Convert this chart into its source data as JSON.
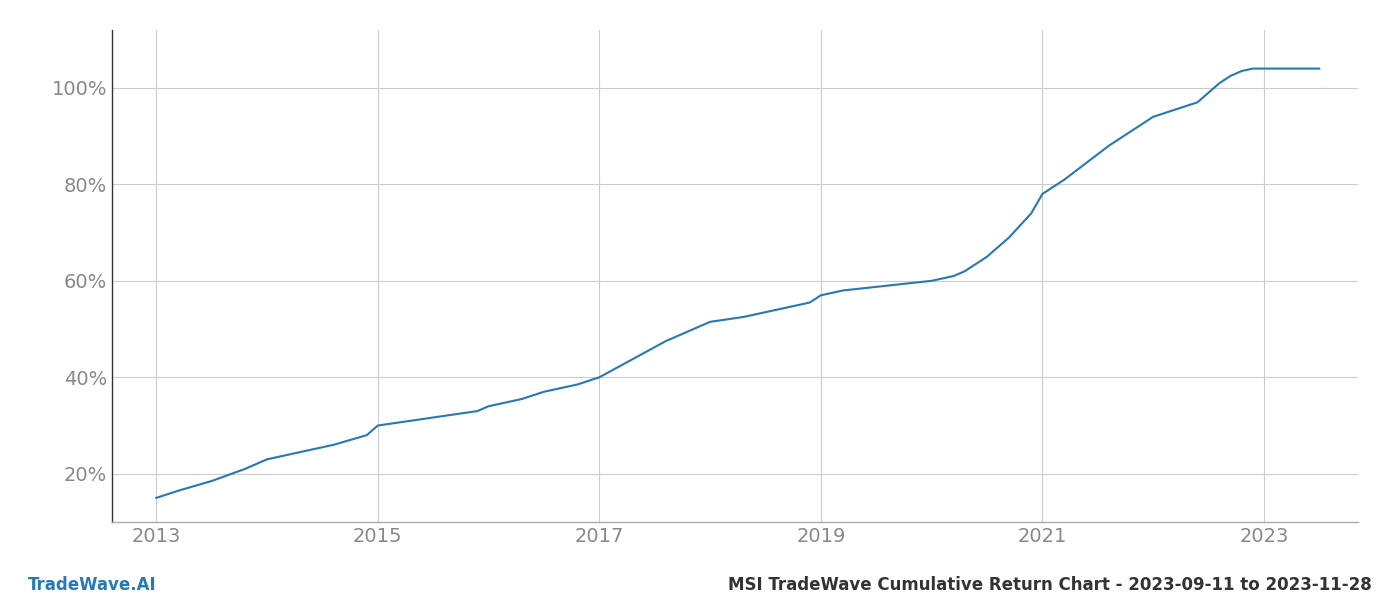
{
  "title_left": "TradeWave.AI",
  "title_right": "MSI TradeWave Cumulative Return Chart - 2023-09-11 to 2023-11-28",
  "line_color": "#2878b5",
  "background_color": "#ffffff",
  "grid_color": "#cccccc",
  "x_years": [
    2013.0,
    2013.2,
    2013.5,
    2013.8,
    2014.0,
    2014.3,
    2014.6,
    2014.9,
    2015.0,
    2015.3,
    2015.6,
    2015.9,
    2016.0,
    2016.3,
    2016.5,
    2016.8,
    2017.0,
    2017.2,
    2017.4,
    2017.6,
    2017.8,
    2018.0,
    2018.3,
    2018.5,
    2018.7,
    2018.9,
    2019.0,
    2019.1,
    2019.2,
    2019.4,
    2019.6,
    2019.8,
    2020.0,
    2020.1,
    2020.2,
    2020.3,
    2020.5,
    2020.7,
    2020.9,
    2021.0,
    2021.2,
    2021.4,
    2021.6,
    2021.8,
    2022.0,
    2022.2,
    2022.4,
    2022.5,
    2022.6,
    2022.7,
    2022.8,
    2022.9,
    2023.0,
    2023.5
  ],
  "y_values": [
    15.0,
    16.5,
    18.5,
    21.0,
    23.0,
    24.5,
    26.0,
    28.0,
    30.0,
    31.0,
    32.0,
    33.0,
    34.0,
    35.5,
    37.0,
    38.5,
    40.0,
    42.5,
    45.0,
    47.5,
    49.5,
    51.5,
    52.5,
    53.5,
    54.5,
    55.5,
    57.0,
    57.5,
    58.0,
    58.5,
    59.0,
    59.5,
    60.0,
    60.5,
    61.0,
    62.0,
    65.0,
    69.0,
    74.0,
    78.0,
    81.0,
    84.5,
    88.0,
    91.0,
    94.0,
    95.5,
    97.0,
    99.0,
    101.0,
    102.5,
    103.5,
    104.0,
    104.0,
    104.0
  ],
  "xticks": [
    2013,
    2015,
    2017,
    2019,
    2021,
    2023
  ],
  "yticks": [
    20,
    40,
    60,
    80,
    100
  ],
  "xlim": [
    2012.6,
    2023.85
  ],
  "ylim": [
    10,
    112
  ],
  "line_width": 1.5,
  "tick_label_color": "#888888",
  "tick_fontsize": 14,
  "footer_fontsize": 12,
  "footer_left_color": "#2878b5",
  "footer_right_color": "#333333",
  "spine_color": "#aaaaaa",
  "left_spine_color": "#333333"
}
